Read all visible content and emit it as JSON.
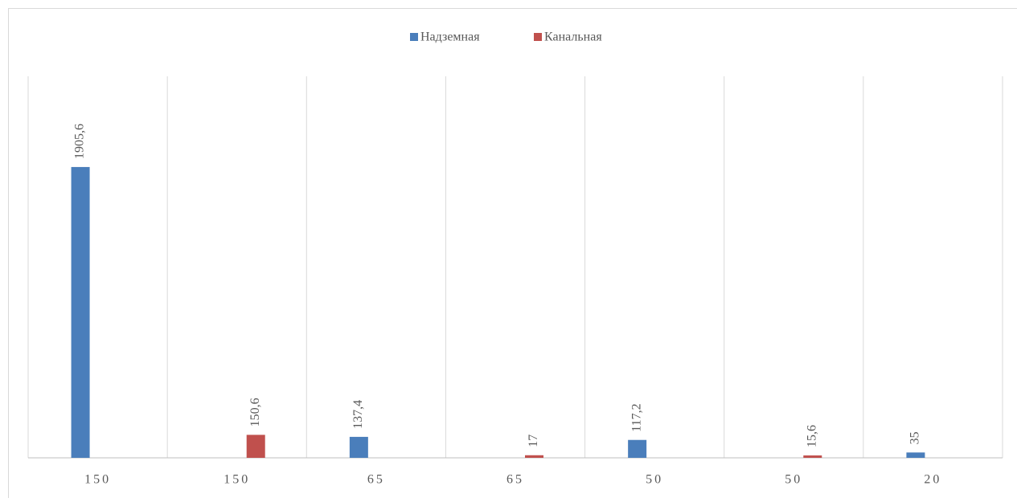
{
  "chart_data": {
    "type": "bar",
    "categories": [
      "150",
      "150",
      "65",
      "65",
      "50",
      "50",
      "20"
    ],
    "series": [
      {
        "name": "Надземная",
        "color": "#4a7ebb",
        "values": [
          1905.6,
          null,
          137.4,
          null,
          117.2,
          null,
          35
        ],
        "value_labels": [
          "1905,6",
          null,
          "137,4",
          null,
          "117,2",
          null,
          "35"
        ]
      },
      {
        "name": "Канальная",
        "color": "#c0504d",
        "values": [
          null,
          150.6,
          null,
          17,
          null,
          15.6,
          null
        ],
        "value_labels": [
          null,
          "150,6",
          null,
          "17",
          null,
          "15,6",
          null
        ]
      }
    ],
    "ylim": [
      0,
      2500
    ],
    "grid": "vertical",
    "legend": "top"
  }
}
